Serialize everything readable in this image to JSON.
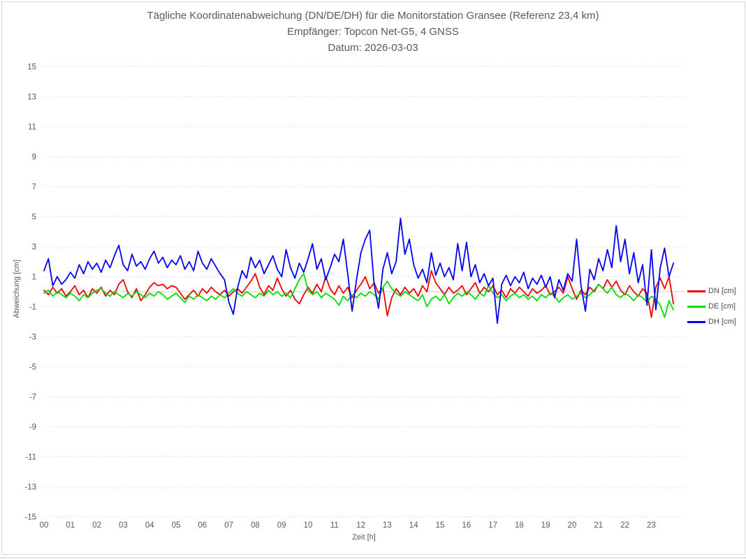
{
  "title": {
    "line1": "Tägliche Koordinatenabweichung (DN/DE/DH) für die Monitorstation Gransee (Referenz 23,4 km)",
    "line2": "Empfänger: Topcon Net-G5, 4 GNSS",
    "line3": "Datum: 2026-03-03"
  },
  "y_axis": {
    "label": "Abweichung [cm]",
    "ticks": [
      15,
      13,
      11,
      9,
      7,
      5,
      3,
      1,
      -1,
      -3,
      -5,
      -7,
      -9,
      -11,
      -13,
      -15
    ]
  },
  "x_axis": {
    "label": "Zeit [h]",
    "ticks": [
      "00",
      "01",
      "02",
      "03",
      "04",
      "05",
      "06",
      "07",
      "08",
      "09",
      "10",
      "11",
      "12",
      "13",
      "14",
      "15",
      "16",
      "17",
      "18",
      "19",
      "20",
      "21",
      "22",
      "23"
    ]
  },
  "legend": {
    "items": [
      {
        "label": "DN [cm]",
        "color": "#ee0000"
      },
      {
        "label": "DE [cm]",
        "color": "#00dd00"
      },
      {
        "label": "DH [cm]",
        "color": "#0000ee"
      }
    ]
  },
  "colors": {
    "grid": "#d9d9d9",
    "zero_line": "#cccccc",
    "tick_text": "#595959"
  },
  "chart_data": {
    "type": "line",
    "title": "Tägliche Koordinatenabweichung (DN/DE/DH) für die Monitorstation Gransee (Referenz 23,4 km)",
    "subtitle": "Empfänger: Topcon Net-G5, 4 GNSS",
    "date_label": "Datum: 2026-03-03",
    "xlabel": "Zeit [h]",
    "ylabel": "Abweichung [cm]",
    "xlim": [
      0,
      24
    ],
    "ylim": [
      -15,
      15
    ],
    "grid": "horizontal-dotted",
    "legend_position": "right",
    "x_start_hours": 0,
    "x_step_hours": 0.1667,
    "series": [
      {
        "name": "DN [cm]",
        "color": "#ee0000",
        "values": [
          0.1,
          -0.2,
          0.3,
          -0.1,
          0.2,
          -0.3,
          0.0,
          0.4,
          -0.2,
          0.1,
          -0.4,
          0.2,
          -0.1,
          0.3,
          -0.3,
          0.1,
          -0.2,
          0.5,
          0.8,
          0.0,
          -0.4,
          0.2,
          -0.6,
          -0.2,
          0.3,
          0.6,
          0.4,
          0.5,
          0.2,
          0.4,
          0.3,
          -0.1,
          -0.5,
          -0.2,
          0.1,
          -0.3,
          0.2,
          -0.1,
          0.3,
          0.0,
          -0.2,
          0.1,
          -0.3,
          0.0,
          0.2,
          -0.1,
          0.3,
          0.7,
          1.2,
          0.3,
          -0.2,
          0.4,
          0.1,
          0.9,
          0.2,
          -0.3,
          0.1,
          -0.5,
          -0.8,
          -0.2,
          0.3,
          -0.1,
          0.5,
          0.0,
          1.0,
          0.2,
          -0.2,
          0.4,
          -0.1,
          0.3,
          -0.4,
          0.1,
          0.5,
          1.0,
          0.2,
          0.6,
          -0.1,
          0.3,
          -1.6,
          -0.4,
          0.2,
          -0.2,
          0.3,
          -0.1,
          0.2,
          -0.3,
          0.4,
          0.0,
          1.4,
          0.6,
          0.2,
          -0.2,
          0.3,
          -0.1,
          0.1,
          0.4,
          -0.2,
          0.2,
          0.6,
          -0.1,
          0.3,
          0.0,
          0.4,
          -0.2,
          0.1,
          -0.4,
          0.2,
          -0.1,
          0.3,
          0.0,
          -0.3,
          0.2,
          -0.1,
          0.1,
          0.4,
          -0.2,
          0.0,
          0.3,
          -0.1,
          1.0,
          0.2,
          -0.5,
          0.1,
          -0.2,
          0.3,
          0.0,
          0.5,
          0.2,
          0.8,
          0.3,
          0.7,
          0.1,
          -0.2,
          0.4,
          0.0,
          -0.3,
          0.2,
          -0.1,
          -1.7,
          0.3,
          0.9,
          0.2,
          1.0,
          -0.8
        ]
      },
      {
        "name": "DE [cm]",
        "color": "#00dd00",
        "values": [
          -0.1,
          0.1,
          -0.3,
          0.0,
          -0.2,
          -0.4,
          -0.1,
          -0.3,
          -0.6,
          -0.2,
          -0.4,
          -0.1,
          0.1,
          0.2,
          -0.1,
          -0.3,
          0.0,
          -0.2,
          -0.4,
          -0.1,
          -0.3,
          0.0,
          -0.2,
          -0.4,
          -0.1,
          -0.3,
          0.0,
          -0.2,
          -0.5,
          -0.3,
          -0.1,
          -0.4,
          -0.7,
          -0.3,
          -0.5,
          -0.2,
          -0.4,
          -0.6,
          -0.3,
          -0.5,
          -0.2,
          -0.4,
          -0.1,
          0.2,
          -0.1,
          -0.3,
          0.0,
          -0.2,
          -0.4,
          -0.1,
          -0.3,
          0.1,
          -0.2,
          0.0,
          -0.3,
          -0.1,
          -0.4,
          0.2,
          0.8,
          1.2,
          0.1,
          -0.2,
          0.0,
          -0.4,
          -0.1,
          -0.3,
          -0.5,
          -0.9,
          -0.3,
          -0.6,
          -0.2,
          -0.4,
          -0.1,
          -0.3,
          0.0,
          -0.2,
          -0.5,
          0.3,
          0.7,
          0.2,
          -0.1,
          -0.3,
          0.0,
          -0.2,
          -0.4,
          -0.6,
          -0.2,
          -1.0,
          -0.5,
          -0.3,
          -0.6,
          -0.2,
          -0.8,
          -0.4,
          -0.1,
          -0.3,
          0.0,
          -0.2,
          -0.5,
          -0.1,
          -0.3,
          0.4,
          -0.1,
          -0.4,
          -0.2,
          -0.6,
          -0.3,
          -0.1,
          -0.4,
          -0.2,
          -0.5,
          -0.3,
          -0.6,
          -0.2,
          -0.4,
          -0.1,
          -0.3,
          -0.7,
          -0.4,
          -0.2,
          -0.5,
          -0.3,
          -0.1,
          -0.4,
          -0.2,
          0.1,
          0.5,
          0.2,
          -0.1,
          0.3,
          -0.2,
          -0.4,
          -0.1,
          -0.3,
          -0.6,
          -0.2,
          -0.4,
          -0.7,
          -0.3,
          -0.5,
          -0.9,
          -1.7,
          -0.6,
          -1.2
        ]
      },
      {
        "name": "DH [cm]",
        "color": "#0000ee",
        "values": [
          1.4,
          2.2,
          0.4,
          1.0,
          0.5,
          0.8,
          1.3,
          0.9,
          1.8,
          1.2,
          2.0,
          1.5,
          1.9,
          1.3,
          2.1,
          1.6,
          2.4,
          3.1,
          1.8,
          1.4,
          2.5,
          1.7,
          2.0,
          1.5,
          2.2,
          2.7,
          1.9,
          2.3,
          1.6,
          2.1,
          1.8,
          2.4,
          1.5,
          2.0,
          1.4,
          2.7,
          1.9,
          1.5,
          2.2,
          1.7,
          1.2,
          0.8,
          -0.7,
          -1.5,
          0.3,
          1.4,
          0.9,
          2.3,
          1.6,
          2.1,
          1.2,
          1.8,
          2.4,
          1.5,
          1.0,
          2.8,
          1.6,
          0.9,
          1.9,
          1.3,
          2.2,
          3.2,
          1.5,
          2.2,
          0.8,
          1.6,
          2.5,
          2.0,
          3.5,
          1.2,
          -1.3,
          0.8,
          2.6,
          3.5,
          4.1,
          0.5,
          -1.1,
          1.5,
          2.6,
          1.2,
          2.0,
          4.9,
          2.5,
          3.5,
          1.8,
          0.9,
          1.5,
          0.6,
          2.6,
          1.1,
          1.9,
          1.0,
          1.6,
          0.8,
          3.2,
          1.4,
          3.3,
          1.0,
          1.8,
          0.6,
          1.2,
          0.4,
          0.9,
          -2.1,
          0.5,
          1.1,
          0.4,
          1.0,
          0.6,
          1.3,
          0.2,
          0.9,
          0.5,
          1.1,
          0.3,
          1.0,
          -0.4,
          0.8,
          0.1,
          1.2,
          0.7,
          3.5,
          0.4,
          -1.3,
          1.5,
          0.8,
          2.2,
          1.4,
          2.8,
          1.6,
          4.4,
          2.0,
          3.5,
          1.2,
          2.6,
          0.6,
          1.8,
          -0.9,
          2.8,
          -1.2,
          1.6,
          2.9,
          1.0,
          1.9
        ]
      }
    ]
  }
}
